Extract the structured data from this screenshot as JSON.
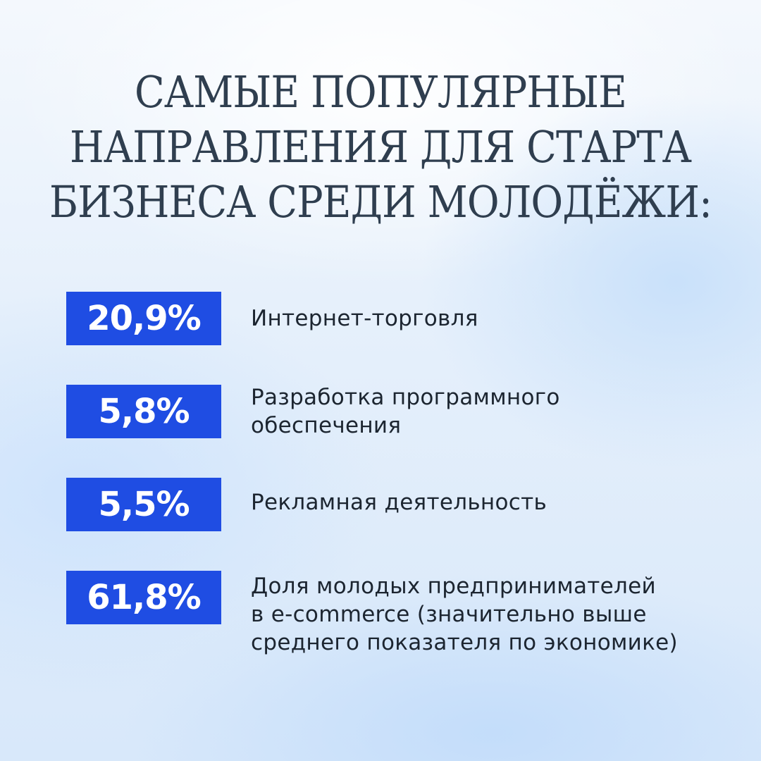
{
  "heading": {
    "lines": [
      "САМЫЕ ПОПУЛЯРНЫЕ",
      "НАПРАВЛЕНИЯ ДЛЯ СТАРТА",
      "БИЗНЕСА СРЕДИ МОЛОДЁЖИ:"
    ]
  },
  "stats": [
    {
      "value": "20,9%",
      "lines": [
        "Интернет-торговля"
      ]
    },
    {
      "value": "5,8%",
      "lines": [
        "Разработка программного",
        "обеспечения"
      ]
    },
    {
      "value": "5,5%",
      "lines": [
        "Рекламная деятельность"
      ]
    },
    {
      "value": "61,8%",
      "lines": [
        "Доля молодых предпринимателей",
        "в e-commerce (значительно выше",
        "среднего показателя по экономике)"
      ]
    }
  ],
  "colors": {
    "badge": "#1f4de3",
    "title": "#2f3e4f",
    "text": "#1c2530"
  }
}
